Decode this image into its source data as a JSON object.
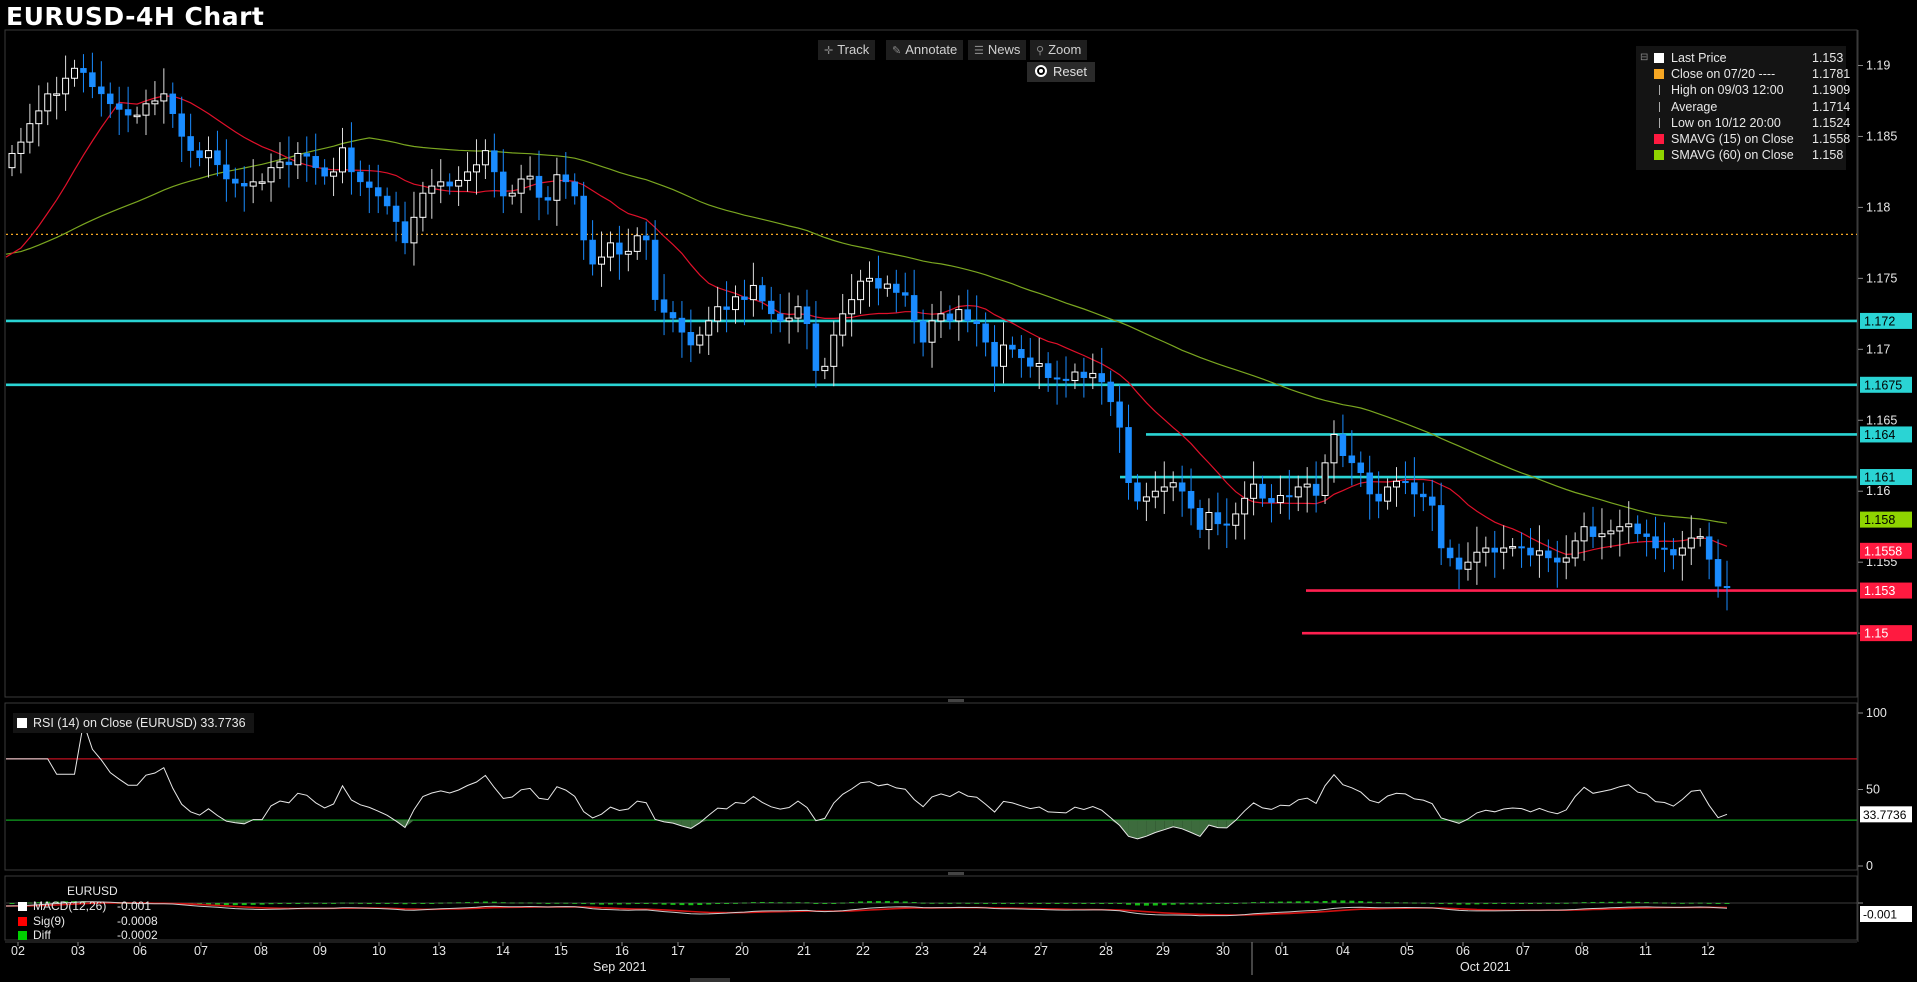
{
  "title": "EURUSD-4H Chart",
  "toolbar": {
    "track": "Track",
    "annotate": "Annotate",
    "news": "News",
    "zoom": "Zoom",
    "reset": "Reset"
  },
  "legend": [
    {
      "label": "Last Price",
      "value": "1.153",
      "color": "#ffffff"
    },
    {
      "label": "Close on 07/20 ----",
      "value": "1.1781",
      "color": "#f5a623"
    },
    {
      "label": "High on 09/03 12:00",
      "value": "1.1909",
      "color": ""
    },
    {
      "label": "Average",
      "value": "1.1714",
      "color": ""
    },
    {
      "label": "Low on 10/12 20:00",
      "value": "1.1524",
      "color": ""
    },
    {
      "label": "SMAVG (15)  on Close",
      "value": "1.1558",
      "color": "#ff1a40"
    },
    {
      "label": "SMAVG (60)  on Close",
      "value": "1.158",
      "color": "#8fd400"
    }
  ],
  "rsi_legend": "RSI (14)  on Close (EURUSD) 33.7736",
  "macd_legend": {
    "title": "EURUSD",
    "rows": [
      {
        "label": "MACD(12,26)",
        "value": "-0.001",
        "color": "#ffffff"
      },
      {
        "label": "Sig(9)",
        "value": "-0.0008",
        "color": "#ff0000"
      },
      {
        "label": "Diff",
        "value": "-0.0002",
        "color": "#00d000"
      }
    ]
  },
  "colors": {
    "up_candle": "#ffffff",
    "down_candle": "#1a8cff",
    "sma15": "#e0102a",
    "sma60": "#7aa620",
    "support_cyan": "#2ad4d4",
    "support_red": "#ff2050",
    "close_dotted": "#f5a623"
  },
  "chart_data": {
    "type": "candlestick",
    "title": "EURUSD-4H Chart",
    "price_ylim": [
      1.1455,
      1.1925
    ],
    "price_ticks": [
      "1.19",
      "1.185",
      "1.18",
      "1.175",
      "1.17",
      "1.165",
      "1.16",
      "1.155",
      "1.15"
    ],
    "x_ticks": [
      "02",
      "03",
      "06",
      "07",
      "08",
      "09",
      "10",
      "13",
      "14",
      "15",
      "16",
      "17",
      "20",
      "21",
      "22",
      "23",
      "24",
      "27",
      "28",
      "29",
      "30",
      "01",
      "04",
      "05",
      "06",
      "07",
      "08",
      "11",
      "12"
    ],
    "month_labels": [
      "Sep 2021",
      "Oct 2021"
    ],
    "close": [
      1.1838,
      1.1846,
      1.1859,
      1.1868,
      1.188,
      1.188,
      1.1891,
      1.1898,
      1.1895,
      1.1885,
      1.188,
      1.1873,
      1.1869,
      1.1865,
      1.1865,
      1.1873,
      1.1875,
      1.188,
      1.1866,
      1.185,
      1.184,
      1.1835,
      1.184,
      1.183,
      1.182,
      1.1817,
      1.1815,
      1.1818,
      1.1818,
      1.1828,
      1.1832,
      1.183,
      1.1838,
      1.1836,
      1.1828,
      1.1822,
      1.1825,
      1.1842,
      1.1825,
      1.1818,
      1.1814,
      1.1808,
      1.1801,
      1.179,
      1.1775,
      1.1793,
      1.181,
      1.1815,
      1.1818,
      1.1815,
      1.1819,
      1.1825,
      1.183,
      1.184,
      1.1825,
      1.1808,
      1.181,
      1.182,
      1.1822,
      1.1807,
      1.1805,
      1.1823,
      1.1818,
      1.1808,
      1.1777,
      1.176,
      1.1765,
      1.1775,
      1.1767,
      1.1769,
      1.178,
      1.1777,
      1.1735,
      1.1726,
      1.1722,
      1.1712,
      1.1703,
      1.171,
      1.172,
      1.173,
      1.1728,
      1.1737,
      1.1735,
      1.1745,
      1.1734,
      1.1725,
      1.172,
      1.1722,
      1.173,
      1.1718,
      1.1685,
      1.1688,
      1.171,
      1.1725,
      1.1735,
      1.1748,
      1.175,
      1.1743,
      1.1746,
      1.174,
      1.1738,
      1.172,
      1.1705,
      1.172,
      1.1725,
      1.172,
      1.1728,
      1.172,
      1.1718,
      1.1705,
      1.1688,
      1.1703,
      1.17,
      1.1694,
      1.1688,
      1.169,
      1.168,
      1.1679,
      1.1678,
      1.1684,
      1.168,
      1.1683,
      1.1677,
      1.1663,
      1.1645,
      1.1606,
      1.1593,
      1.1596,
      1.16,
      1.1603,
      1.1606,
      1.16,
      1.1588,
      1.1573,
      1.1585,
      1.1577,
      1.1576,
      1.1584,
      1.1595,
      1.1605,
      1.1595,
      1.1592,
      1.1597,
      1.1596,
      1.1603,
      1.1605,
      1.1597,
      1.162,
      1.164,
      1.1625,
      1.162,
      1.1613,
      1.1598,
      1.1593,
      1.1603,
      1.1607,
      1.1606,
      1.1598,
      1.1596,
      1.159,
      1.156,
      1.1553,
      1.1545,
      1.155,
      1.1557,
      1.156,
      1.1557,
      1.156,
      1.1561,
      1.156,
      1.1555,
      1.1558,
      1.1553,
      1.155,
      1.1553,
      1.1565,
      1.1575,
      1.1568,
      1.157,
      1.1572,
      1.1575,
      1.1577,
      1.157,
      1.1568,
      1.156,
      1.1559,
      1.1555,
      1.156,
      1.1567,
      1.1568,
      1.1552,
      1.1533,
      1.1532
    ],
    "sma15_start_end": [
      1.1765,
      1.1558
    ],
    "sma60_start_end": [
      1.1767,
      1.158
    ],
    "horizontal_lines": [
      {
        "label": "1.172",
        "value": 1.172,
        "color": "cyan"
      },
      {
        "label": "1.1675",
        "value": 1.1675,
        "color": "cyan"
      },
      {
        "label": "1.164",
        "value": 1.164,
        "color": "cyan"
      },
      {
        "label": "1.161",
        "value": 1.161,
        "color": "cyan"
      },
      {
        "label": "1.153",
        "value": 1.153,
        "color": "red"
      },
      {
        "label": "1.15",
        "value": 1.15,
        "color": "red"
      }
    ],
    "price_tags": [
      {
        "label": "1.172",
        "value": 1.172,
        "color": "#2ad4d4"
      },
      {
        "label": "1.1675",
        "value": 1.1675,
        "color": "#2ad4d4"
      },
      {
        "label": "1.164",
        "value": 1.164,
        "color": "#2ad4d4"
      },
      {
        "label": "1.161",
        "value": 1.161,
        "color": "#2ad4d4"
      },
      {
        "label": "1.158",
        "value": 1.158,
        "color": "#8fd400"
      },
      {
        "label": "1.1558",
        "value": 1.1558,
        "color": "#ff1a40"
      },
      {
        "label": "1.153",
        "value": 1.153,
        "color": "#ff1a40"
      },
      {
        "label": "1.15",
        "value": 1.15,
        "color": "#ff1a40"
      }
    ],
    "rsi": {
      "ylim": [
        0,
        100
      ],
      "ticks": [
        "100",
        "50",
        "0"
      ],
      "upper": 70,
      "lower": 30,
      "current_label": "33.7736",
      "current": 33.77
    },
    "macd": {
      "zero_label": "-0.001",
      "current": -0.001
    }
  }
}
